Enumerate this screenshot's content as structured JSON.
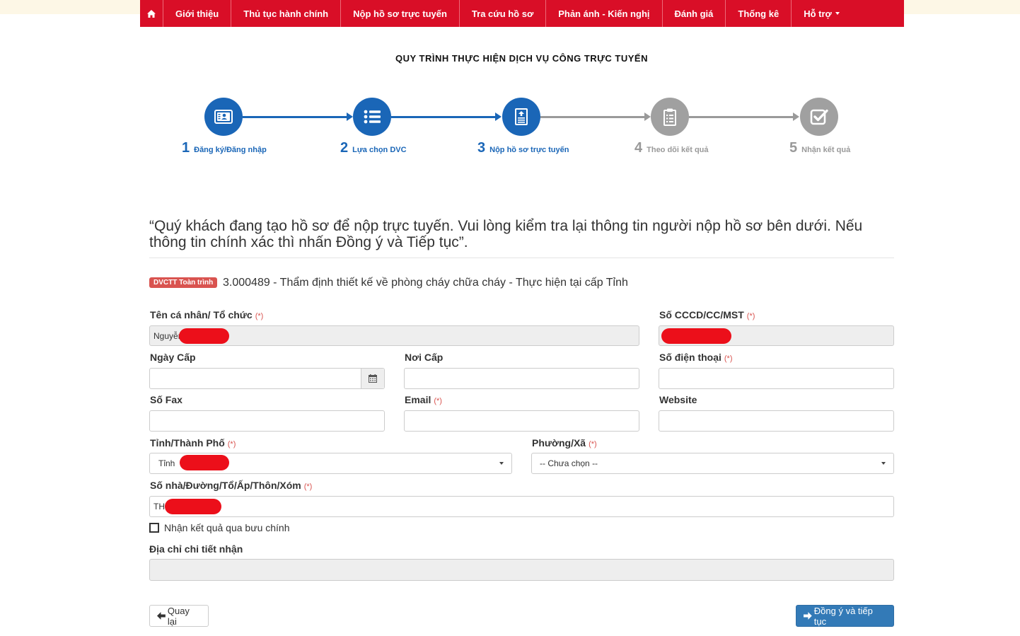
{
  "nav": {
    "home_icon": "home-icon",
    "items": [
      {
        "label": "Giới thiệu"
      },
      {
        "label": "Thủ tục hành chính"
      },
      {
        "label": "Nộp hồ sơ trực tuyến"
      },
      {
        "label": "Tra cứu hồ sơ"
      },
      {
        "label": "Phản ánh - Kiến nghị"
      },
      {
        "label": "Đánh giá"
      },
      {
        "label": "Thống kê"
      },
      {
        "label": "Hỗ trợ"
      }
    ]
  },
  "process": {
    "title": "QUY TRÌNH THỰC HIỆN DỊCH VỤ CÔNG TRỰC TUYẾN",
    "steps": [
      {
        "num": "1",
        "label": "Đăng ký/Đăng nhập",
        "icon": "id-card-icon",
        "state": "done"
      },
      {
        "num": "2",
        "label": "Lựa chọn DVC",
        "icon": "list-icon",
        "state": "done"
      },
      {
        "num": "3",
        "label": "Nộp hồ sơ trực tuyến",
        "icon": "file-upload-icon",
        "state": "current"
      },
      {
        "num": "4",
        "label": "Theo dõi kết quả",
        "icon": "clipboard-icon",
        "state": "pending"
      },
      {
        "num": "5",
        "label": "Nhận kết quả",
        "icon": "checkbox-icon",
        "state": "pending"
      }
    ]
  },
  "intro": "“Quý khách đang tạo hồ sơ để nộp trực tuyến. Vui lòng kiểm tra lại thông tin người nộp hồ sơ bên dưới. Nếu thông tin chính xác thì nhấn Đồng ý và Tiếp tục”.",
  "procedure": {
    "badge": "DVCTT Toàn trình",
    "name": "3.000489 - Thẩm định thiết kế về phòng cháy chữa cháy - Thực hiện tại cấp Tỉnh"
  },
  "form": {
    "required_mark": "(*)",
    "name": {
      "label": "Tên cá nhân/ Tổ chức",
      "value": "Nguyễn"
    },
    "id_number": {
      "label": "Số CCCD/CC/MST",
      "value": ""
    },
    "issue_date": {
      "label": "Ngày Cấp",
      "value": ""
    },
    "issue_place": {
      "label": "Nơi Cấp",
      "value": ""
    },
    "phone": {
      "label": "Số điện thoại",
      "value": ""
    },
    "fax": {
      "label": "Số Fax",
      "value": ""
    },
    "email": {
      "label": "Email",
      "value": ""
    },
    "website": {
      "label": "Website",
      "value": ""
    },
    "province": {
      "label": "Tỉnh/Thành Phố",
      "value": "Tỉnh"
    },
    "ward": {
      "label": "Phường/Xã",
      "value": "-- Chưa chọn --"
    },
    "address": {
      "label": "Số nhà/Đường/Tổ/Ấp/Thôn/Xóm",
      "value": "TH"
    },
    "postal_checkbox": {
      "label": "Nhận kết quả qua bưu chính",
      "checked": false
    },
    "detail_address": {
      "label": "Địa chỉ chi tiết nhận",
      "value": ""
    }
  },
  "buttons": {
    "back": "Quay lại",
    "next": "Đồng ý và tiếp tục"
  },
  "colors": {
    "nav_bg": "#d90e27",
    "step_active": "#1a66b7",
    "step_pending": "#a0a0a0",
    "badge_bg": "#d9534f",
    "primary_button": "#337ab7"
  }
}
